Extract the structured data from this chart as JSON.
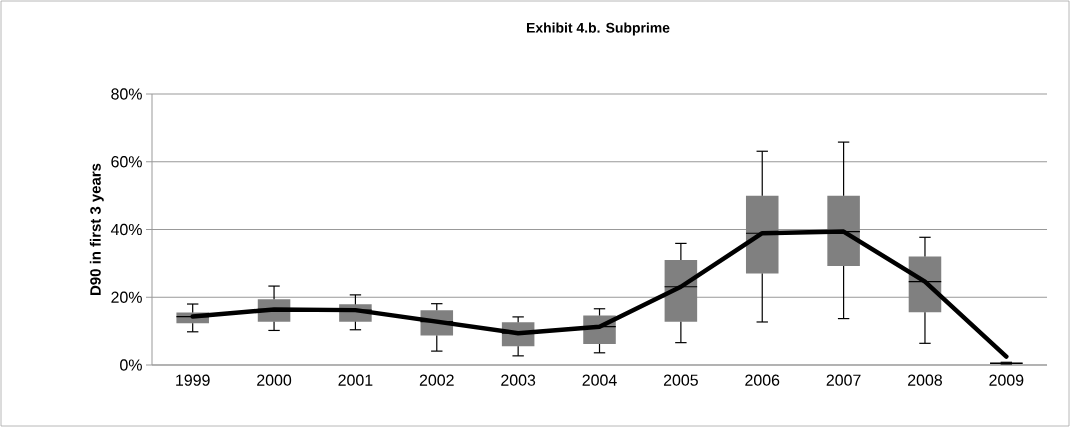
{
  "chart_data": {
    "type": "box",
    "title": "Exhibit 4.b. Subprime",
    "ylabel": "D90 in first 3 years",
    "categories": [
      "1999",
      "2000",
      "2001",
      "2002",
      "2003",
      "2004",
      "2005",
      "2006",
      "2007",
      "2008",
      "2009"
    ],
    "series": [
      {
        "color": "#808080",
        "boxes": [
          {
            "low": 9.8,
            "q1": 12.3,
            "median": 14.3,
            "q3": 15.5,
            "high": 18.0
          },
          {
            "low": 10.2,
            "q1": 12.8,
            "median": 16.4,
            "q3": 19.4,
            "high": 23.3
          },
          {
            "low": 10.4,
            "q1": 12.8,
            "median": 16.2,
            "q3": 17.9,
            "high": 20.7
          },
          {
            "low": 4.1,
            "q1": 8.7,
            "median": 12.8,
            "q3": 16.2,
            "high": 18.1
          },
          {
            "low": 2.7,
            "q1": 5.5,
            "median": 9.4,
            "q3": 12.6,
            "high": 14.2
          },
          {
            "low": 3.6,
            "q1": 6.2,
            "median": 11.3,
            "q3": 14.6,
            "high": 16.6
          },
          {
            "low": 6.6,
            "q1": 12.8,
            "median": 23.1,
            "q3": 31.0,
            "high": 35.9
          },
          {
            "low": 12.7,
            "q1": 27.0,
            "median": 38.9,
            "q3": 50.0,
            "high": 63.1
          },
          {
            "low": 13.7,
            "q1": 29.2,
            "median": 39.4,
            "q3": 50.0,
            "high": 65.8
          },
          {
            "low": 6.4,
            "q1": 15.6,
            "median": 24.6,
            "q3": 32.0,
            "high": 37.7
          },
          {
            "low": 0.3,
            "q1": 0.3,
            "median": 0.5,
            "q3": 0.8,
            "high": 0.8
          }
        ]
      },
      {
        "type": "line",
        "color": "#000000",
        "values": [
          14.3,
          16.4,
          16.2,
          12.8,
          9.4,
          11.3,
          23.1,
          38.9,
          39.4,
          24.6,
          2.5
        ]
      }
    ],
    "ylim": [
      0,
      80
    ],
    "yticks": [
      {
        "value": 0,
        "label": "0%"
      },
      {
        "value": 20,
        "label": "20%"
      },
      {
        "value": 40,
        "label": "40%"
      },
      {
        "value": 60,
        "label": "60%"
      },
      {
        "value": 80,
        "label": "80%"
      }
    ],
    "grid": "y"
  }
}
